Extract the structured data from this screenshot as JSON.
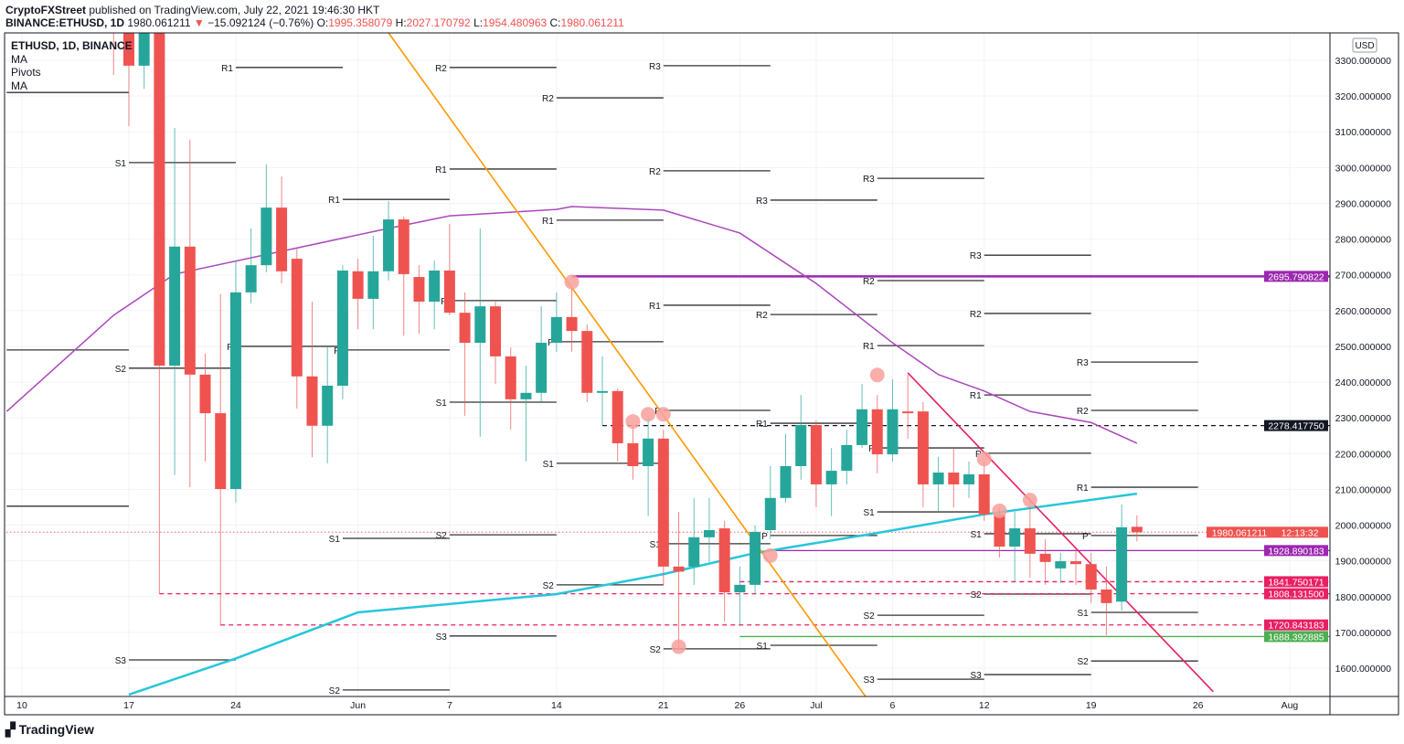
{
  "header": {
    "publisher": "CryptoFXStreet",
    "published_text": "published on TradingView.com, July 22, 2021 19:46:30 HKT",
    "symbol": "BINANCE:ETHUSD, 1D",
    "last": "1980.061211",
    "arrow": "▼",
    "change": "−15.092124 (−0.76%)",
    "o_label": "O:",
    "o": "1995.358079",
    "h_label": "H:",
    "h": "2027.170792",
    "l_label": "L:",
    "l": "1954.480963",
    "c_label": "C:",
    "c": "1980.061211"
  },
  "legend": {
    "title": "ETHUSD, 1D, BINANCE",
    "items": [
      "MA",
      "Pivots",
      "MA"
    ]
  },
  "axis": {
    "currency": "USD",
    "countdown": "12:13:32"
  },
  "footer": {
    "logo": "TradingView"
  },
  "colors": {
    "up": "#26a69a",
    "down": "#ef5350",
    "ma_slow": "#ab47bc",
    "ma_fast": "#26c6da",
    "trend_orange": "#ff9800",
    "trend_pink": "#e91e63",
    "pivot": "#131722",
    "marker": "#f8a09b"
  },
  "chart_data": {
    "type": "candlestick",
    "ylim": [
      1560,
      3370
    ],
    "xlim": [
      "2021-05-09",
      "2021-08-04"
    ],
    "yticks": [
      3300,
      3200,
      3100,
      3000,
      2900,
      2800,
      2700,
      2600,
      2500,
      2400,
      2300,
      2200,
      2100,
      2000,
      1900,
      1800,
      1700,
      1600
    ],
    "xticks": [
      {
        "date": "2021-05-10",
        "label": "10"
      },
      {
        "date": "2021-05-17",
        "label": "17"
      },
      {
        "date": "2021-05-24",
        "label": "24"
      },
      {
        "date": "2021-06-01",
        "label": "Jun"
      },
      {
        "date": "2021-06-07",
        "label": "7"
      },
      {
        "date": "2021-06-14",
        "label": "14"
      },
      {
        "date": "2021-06-21",
        "label": "21"
      },
      {
        "date": "2021-06-26",
        "label": "26"
      },
      {
        "date": "2021-07-01",
        "label": "Jul"
      },
      {
        "date": "2021-07-06",
        "label": "6"
      },
      {
        "date": "2021-07-12",
        "label": "12"
      },
      {
        "date": "2021-07-19",
        "label": "19"
      },
      {
        "date": "2021-07-26",
        "label": "26"
      },
      {
        "date": "2021-08-01",
        "label": "Aug"
      }
    ],
    "grid": true,
    "candles": [
      [
        "2021-05-16",
        3560,
        3600,
        3259,
        3500
      ],
      [
        "2021-05-17",
        3580,
        3600,
        3116,
        3285
      ],
      [
        "2021-05-18",
        3285,
        3560,
        3220,
        3380
      ],
      [
        "2021-05-19",
        3380,
        3440,
        1808,
        2446
      ],
      [
        "2021-05-20",
        2446,
        3111,
        2140,
        2779
      ],
      [
        "2021-05-21",
        2779,
        3078,
        2106,
        2421
      ],
      [
        "2021-05-22",
        2421,
        2480,
        2178,
        2313
      ],
      [
        "2021-05-23",
        2313,
        2646,
        1720,
        2101
      ],
      [
        "2021-05-24",
        2101,
        2740,
        2063,
        2651
      ],
      [
        "2021-05-25",
        2651,
        2830,
        2620,
        2727
      ],
      [
        "2021-05-26",
        2727,
        3009,
        2707,
        2888
      ],
      [
        "2021-05-27",
        2888,
        2975,
        2676,
        2710
      ],
      [
        "2021-05-28",
        2745,
        2773,
        2326,
        2416
      ],
      [
        "2021-05-29",
        2416,
        2625,
        2190,
        2278
      ],
      [
        "2021-05-30",
        2278,
        2503,
        2173,
        2390
      ],
      [
        "2021-05-31",
        2390,
        2727,
        2352,
        2712
      ],
      [
        "2021-06-01",
        2710,
        2745,
        2548,
        2633
      ],
      [
        "2021-06-02",
        2633,
        2809,
        2548,
        2710
      ],
      [
        "2021-06-03",
        2710,
        2906,
        2684,
        2855
      ],
      [
        "2021-06-04",
        2855,
        2863,
        2530,
        2702
      ],
      [
        "2021-06-05",
        2694,
        2727,
        2535,
        2625
      ],
      [
        "2021-06-06",
        2625,
        2740,
        2548,
        2712
      ],
      [
        "2021-06-07",
        2712,
        2842,
        2587,
        2594
      ],
      [
        "2021-06-08",
        2594,
        2651,
        2306,
        2510
      ],
      [
        "2021-06-09",
        2510,
        2830,
        2247,
        2612
      ],
      [
        "2021-06-10",
        2612,
        2625,
        2395,
        2472
      ],
      [
        "2021-06-11",
        2472,
        2497,
        2267,
        2352
      ],
      [
        "2021-06-12",
        2352,
        2446,
        2178,
        2370
      ],
      [
        "2021-06-13",
        2370,
        2612,
        2344,
        2510
      ],
      [
        "2021-06-14",
        2510,
        2651,
        2485,
        2582
      ],
      [
        "2021-06-15",
        2582,
        2663,
        2485,
        2543
      ],
      [
        "2021-06-16",
        2543,
        2561,
        2344,
        2370
      ],
      [
        "2021-06-17",
        2370,
        2472,
        2280,
        2375
      ],
      [
        "2021-06-18",
        2375,
        2382,
        2178,
        2229
      ],
      [
        "2021-06-19",
        2229,
        2280,
        2127,
        2165
      ],
      [
        "2021-06-20",
        2165,
        2306,
        2025,
        2242
      ],
      [
        "2021-06-21",
        2242,
        2267,
        1833,
        1884
      ],
      [
        "2021-06-22",
        1884,
        2037,
        1649,
        1870
      ],
      [
        "2021-06-23",
        1884,
        2076,
        1833,
        1966
      ],
      [
        "2021-06-24",
        1966,
        2076,
        1897,
        1986
      ],
      [
        "2021-06-25",
        1991,
        2012,
        1731,
        1812
      ],
      [
        "2021-06-26",
        1812,
        1884,
        1718,
        1833
      ],
      [
        "2021-06-27",
        1833,
        1999,
        1807,
        1981
      ],
      [
        "2021-06-28",
        1986,
        2165,
        1961,
        2076
      ],
      [
        "2021-06-29",
        2076,
        2255,
        2063,
        2165
      ],
      [
        "2021-06-30",
        2165,
        2364,
        2127,
        2280
      ],
      [
        "2021-07-01",
        2280,
        2293,
        2050,
        2114
      ],
      [
        "2021-07-02",
        2114,
        2216,
        2025,
        2152
      ],
      [
        "2021-07-03",
        2152,
        2267,
        2114,
        2224
      ],
      [
        "2021-07-04",
        2224,
        2395,
        2216,
        2324
      ],
      [
        "2021-07-05",
        2324,
        2364,
        2145,
        2198
      ],
      [
        "2021-07-06",
        2198,
        2408,
        2178,
        2324
      ],
      [
        "2021-07-07",
        2318,
        2421,
        2242,
        2313
      ],
      [
        "2021-07-08",
        2318,
        2344,
        2050,
        2114
      ],
      [
        "2021-07-09",
        2114,
        2191,
        2037,
        2147
      ],
      [
        "2021-07-10",
        2147,
        2216,
        2050,
        2114
      ],
      [
        "2021-07-11",
        2114,
        2178,
        2076,
        2142
      ],
      [
        "2021-07-12",
        2142,
        2178,
        2012,
        2030
      ],
      [
        "2021-07-13",
        2030,
        2050,
        1909,
        1940
      ],
      [
        "2021-07-14",
        1940,
        2037,
        1843,
        1991
      ],
      [
        "2021-07-15",
        1991,
        2076,
        1853,
        1920
      ],
      [
        "2021-07-16",
        1920,
        1961,
        1833,
        1897
      ],
      [
        "2021-07-17",
        1879,
        1922,
        1838,
        1899
      ],
      [
        "2021-07-18",
        1899,
        1935,
        1833,
        1891
      ],
      [
        "2021-07-19",
        1891,
        1922,
        1782,
        1820
      ],
      [
        "2021-07-20",
        1820,
        1884,
        1692,
        1782
      ],
      [
        "2021-07-21",
        1786,
        2058,
        1761,
        1994
      ],
      [
        "2021-07-22",
        1995.358079,
        2027.170792,
        1954.480963,
        1980.061211
      ]
    ],
    "ma_slow": [
      [
        "2021-05-09",
        2318
      ],
      [
        "2021-05-16",
        2587
      ],
      [
        "2021-05-20",
        2702
      ],
      [
        "2021-05-27",
        2766
      ],
      [
        "2021-06-03",
        2830
      ],
      [
        "2021-06-07",
        2865
      ],
      [
        "2021-06-14",
        2883
      ],
      [
        "2021-06-15",
        2891
      ],
      [
        "2021-06-21",
        2881
      ],
      [
        "2021-06-26",
        2817
      ],
      [
        "2021-07-01",
        2676
      ],
      [
        "2021-07-06",
        2510
      ],
      [
        "2021-07-09",
        2421
      ],
      [
        "2021-07-12",
        2375
      ],
      [
        "2021-07-15",
        2318
      ],
      [
        "2021-07-19",
        2287
      ],
      [
        "2021-07-22",
        2229
      ]
    ],
    "ma_fast": [
      [
        "2021-05-17",
        1526
      ],
      [
        "2021-05-24",
        1627
      ],
      [
        "2021-06-01",
        1756
      ],
      [
        "2021-06-14",
        1807
      ],
      [
        "2021-06-21",
        1863
      ],
      [
        "2021-06-27",
        1922
      ],
      [
        "2021-07-05",
        1978
      ],
      [
        "2021-07-12",
        2030
      ],
      [
        "2021-07-22",
        2088
      ]
    ],
    "trendlines": [
      {
        "color": "orange",
        "from": [
          "2021-06-03",
          3377
        ],
        "to": [
          "2021-07-05",
          1475
        ]
      },
      {
        "color": "pink",
        "from": [
          "2021-07-07",
          2426
        ],
        "to": [
          "2021-07-27",
          1534
        ]
      }
    ],
    "hlines": [
      {
        "price": "2695.790822",
        "from": "2021-06-15",
        "style": "solid",
        "color": "#9c27b0",
        "label_bg": "#9c27b0"
      },
      {
        "price": "2278.417750",
        "from": "2021-06-17",
        "style": "dashed",
        "color": "#131722",
        "label_bg": "#131722"
      },
      {
        "price": "1980.061211",
        "from": "2021-05-09",
        "style": "dotted",
        "color": "#ef5350",
        "label_bg": "#ef5350"
      },
      {
        "price": "1928.890183",
        "from": "2021-06-28",
        "style": "solid",
        "color": "#9c27b0",
        "label_bg": "#9c27b0"
      },
      {
        "price": "1841.750171",
        "from": "2021-06-26",
        "style": "dashed",
        "color": "#e91e63",
        "label_bg": "#e91e63"
      },
      {
        "price": "1808.131500",
        "from": "2021-05-19",
        "style": "dashed",
        "color": "#e91e63",
        "label_bg": "#e91e63"
      },
      {
        "price": "1720.843183",
        "from": "2021-05-23",
        "style": "dashed",
        "color": "#e91e63",
        "label_bg": "#e91e63"
      },
      {
        "price": "1688.392885",
        "from": "2021-06-26",
        "style": "solid",
        "color": "#4caf50",
        "label_bg": "#4caf50"
      }
    ],
    "markers": [
      [
        "2021-06-15",
        2680
      ],
      [
        "2021-06-19",
        2290
      ],
      [
        "2021-06-20",
        2310
      ],
      [
        "2021-06-21",
        2310
      ],
      [
        "2021-06-22",
        1660
      ],
      [
        "2021-06-28",
        1915
      ],
      [
        "2021-07-05",
        2420
      ],
      [
        "2021-07-12",
        2185
      ],
      [
        "2021-07-13",
        2040
      ],
      [
        "2021-07-15",
        2070
      ]
    ],
    "pivots": [
      {
        "from": "2021-05-09",
        "to": "2021-05-17",
        "levels": [
          [
            "S1",
            3210
          ],
          [
            "S2",
            2490
          ],
          [
            "S3",
            2053
          ]
        ]
      },
      {
        "from": "2021-05-17",
        "to": "2021-05-24",
        "levels": [
          [
            "S1",
            3014
          ],
          [
            "S2",
            2439
          ],
          [
            "S3",
            1623
          ]
        ]
      },
      {
        "from": "2021-05-24",
        "to": "2021-05-31",
        "levels": [
          [
            "R1",
            3280
          ],
          [
            "P",
            2500
          ]
        ]
      },
      {
        "from": "2021-05-31",
        "to": "2021-06-07",
        "levels": [
          [
            "R1",
            2911
          ],
          [
            "P",
            2490
          ],
          [
            "S1",
            1963
          ],
          [
            "S2",
            1539
          ]
        ]
      },
      {
        "from": "2021-06-07",
        "to": "2021-06-14",
        "levels": [
          [
            "R2",
            3280
          ],
          [
            "R1",
            2996
          ],
          [
            "P",
            2628
          ],
          [
            "S1",
            2344
          ],
          [
            "S2",
            1973
          ],
          [
            "S3",
            1690
          ]
        ]
      },
      {
        "from": "2021-06-14",
        "to": "2021-06-21",
        "levels": [
          [
            "R2",
            3195
          ],
          [
            "R1",
            2853
          ],
          [
            "P",
            2513
          ],
          [
            "S1",
            2173
          ],
          [
            "S2",
            1833
          ]
        ]
      },
      {
        "from": "2021-06-21",
        "to": "2021-06-28",
        "levels": [
          [
            "R3",
            3285
          ],
          [
            "R2",
            2991
          ],
          [
            "R1",
            2615
          ],
          [
            "P",
            2321
          ],
          [
            "S1",
            1948
          ],
          [
            "S2",
            1654
          ]
        ]
      },
      {
        "from": "2021-06-28",
        "to": "2021-07-05",
        "levels": [
          [
            "R3",
            2909
          ],
          [
            "R2",
            2589
          ],
          [
            "R1",
            2285
          ],
          [
            "P",
            1971
          ],
          [
            "S1",
            1664
          ]
        ]
      },
      {
        "from": "2021-07-05",
        "to": "2021-07-12",
        "levels": [
          [
            "R3",
            2970
          ],
          [
            "R2",
            2684
          ],
          [
            "R1",
            2502
          ],
          [
            "P",
            2216
          ],
          [
            "S1",
            2037
          ],
          [
            "S2",
            1748
          ],
          [
            "S3",
            1569
          ]
        ]
      },
      {
        "from": "2021-07-12",
        "to": "2021-07-19",
        "levels": [
          [
            "R3",
            2755
          ],
          [
            "R2",
            2592
          ],
          [
            "R1",
            2364
          ],
          [
            "P",
            2201
          ],
          [
            "S1",
            1976
          ],
          [
            "S2",
            1807
          ],
          [
            "S3",
            1582
          ]
        ]
      },
      {
        "from": "2021-07-19",
        "to": "2021-07-26",
        "levels": [
          [
            "R3",
            2456
          ],
          [
            "R2",
            2321
          ],
          [
            "R1",
            2106
          ],
          [
            "P",
            1971
          ],
          [
            "S1",
            1756
          ],
          [
            "S2",
            1620
          ]
        ]
      }
    ]
  }
}
